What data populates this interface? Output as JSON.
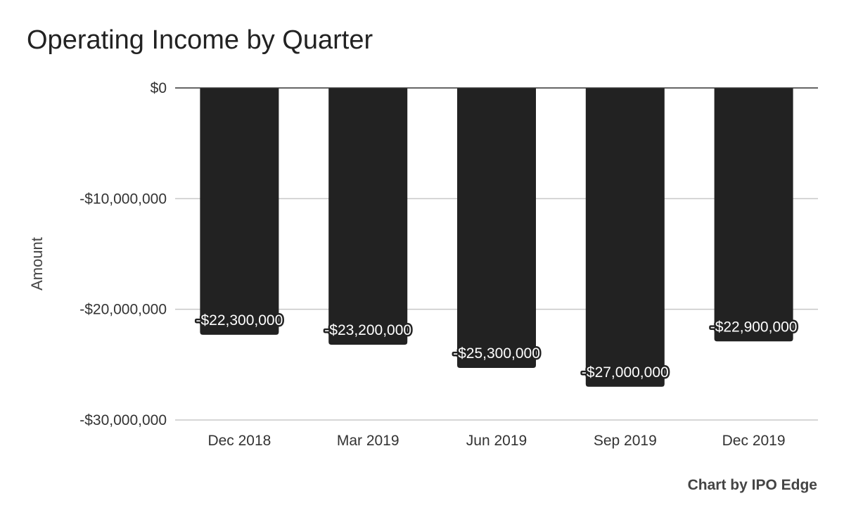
{
  "chart_data": {
    "type": "bar",
    "title": "Operating Income by Quarter",
    "xlabel": "",
    "ylabel": "Amount",
    "categories": [
      "Dec 2018",
      "Mar 2019",
      "Jun 2019",
      "Sep 2019",
      "Dec 2019"
    ],
    "values": [
      -22300000,
      -23200000,
      -25300000,
      -27000000,
      -22900000
    ],
    "data_labels": [
      "-$22,300,000",
      "-$23,200,000",
      "-$25,300,000",
      "-$27,000,000",
      "-$22,900,000"
    ],
    "ylim": [
      -30000000,
      0
    ],
    "yticks": [
      0,
      -10000000,
      -20000000,
      -30000000
    ],
    "ytick_labels": [
      "$0",
      "-$10,000,000",
      "-$20,000,000",
      "-$30,000,000"
    ],
    "grid": true,
    "legend": "none",
    "bar_color": "#222222",
    "credit": "Chart by IPO Edge"
  }
}
